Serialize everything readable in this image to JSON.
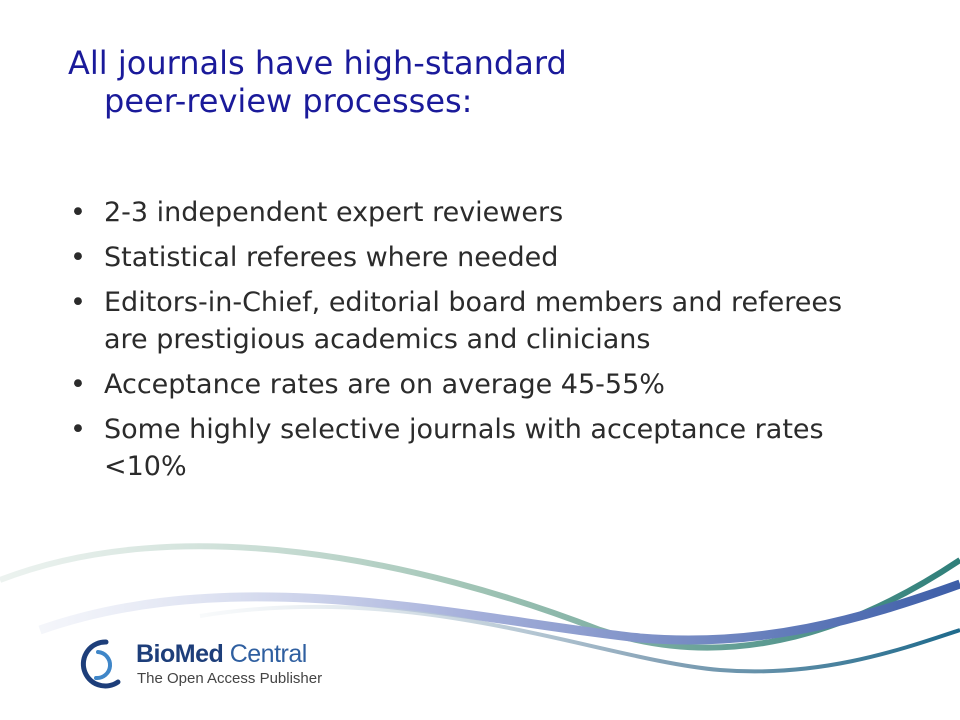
{
  "slide": {
    "title": {
      "line1": "All journals have high-standard",
      "line2": "peer-review processes:"
    },
    "bullet_char": "•",
    "bullets": [
      "2-3 independent expert reviewers",
      "Statistical referees where needed",
      "Editors-in-Chief, editorial board members and referees are prestigious academics and clinicians",
      "Acceptance rates are on average 45-55%",
      "Some highly selective journals with acceptance rates <10%"
    ]
  },
  "logo": {
    "name_bold": "BioMed",
    "name_regular": " Central",
    "tagline": "The Open Access Publisher"
  },
  "colors": {
    "title": "#1a1a9a",
    "text": "#2b2b2b",
    "brand_dark": "#1d3e7a",
    "brand_light": "#2f5fa0"
  },
  "icons": {
    "logo_mark": "biomed-central-logo-icon",
    "decoration": "swoosh-decoration-icon"
  }
}
